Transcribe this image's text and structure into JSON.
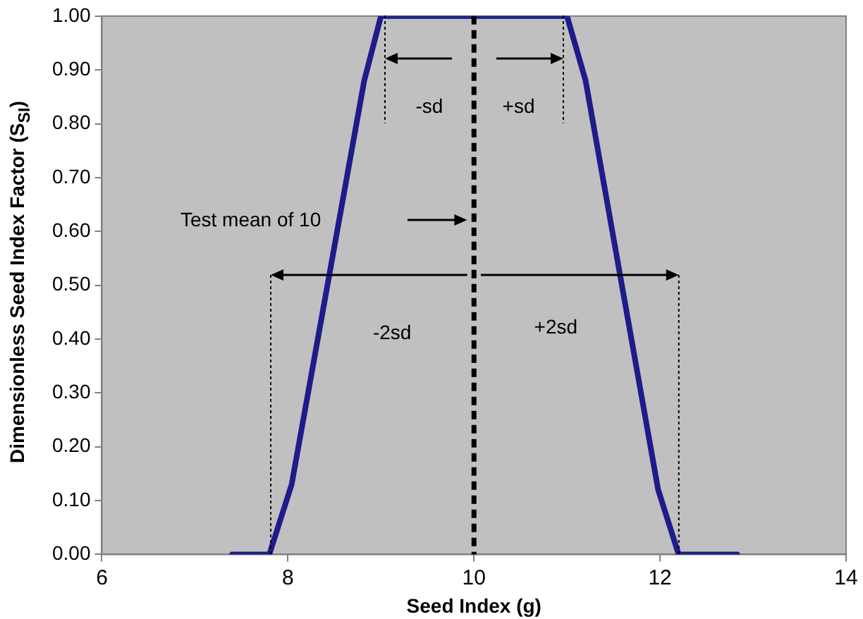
{
  "chart_data": {
    "type": "line",
    "xlabel": "Seed Index (g)",
    "ylabel": "Dimensionless Seed Index Factor (S$_{SI}$)",
    "series": [
      {
        "color": "#1c1c8a",
        "x": [
          7.4,
          7.8,
          8.04,
          8.82,
          9.0,
          11.0,
          11.2,
          11.98,
          12.2,
          12.83
        ],
        "values": [
          0,
          0,
          0.13,
          0.88,
          1.0,
          1.0,
          0.88,
          0.12,
          0,
          0
        ]
      }
    ],
    "xlim": [
      6,
      14
    ],
    "xticks": [
      6,
      8,
      10,
      12,
      14
    ],
    "ylim": [
      0,
      1
    ],
    "yticks": [
      {
        "value": 0,
        "label": "0.00"
      },
      {
        "value": 0.1,
        "label": "0.10"
      },
      {
        "value": 0.2,
        "label": "0.20"
      },
      {
        "value": 0.3,
        "label": "0.30"
      },
      {
        "value": 0.4,
        "label": "0.40"
      },
      {
        "value": 0.5,
        "label": "0.50"
      },
      {
        "value": 0.6,
        "label": "0.60"
      },
      {
        "value": 0.7,
        "label": "0.70"
      },
      {
        "value": 0.8,
        "label": "0.80"
      },
      {
        "value": 0.9,
        "label": "0.90"
      },
      {
        "value": 1,
        "label": "1.00"
      }
    ],
    "ref_lines": [
      {
        "axis": "x",
        "value": 10,
        "color": "#000000",
        "line_style": "dashed"
      }
    ],
    "annotations": [
      "-sd",
      "+sd",
      "Test mean of 10",
      "-2sd",
      "+2sd"
    ],
    "grid": false,
    "legend": false,
    "marker": "none",
    "line_style": "solid"
  }
}
